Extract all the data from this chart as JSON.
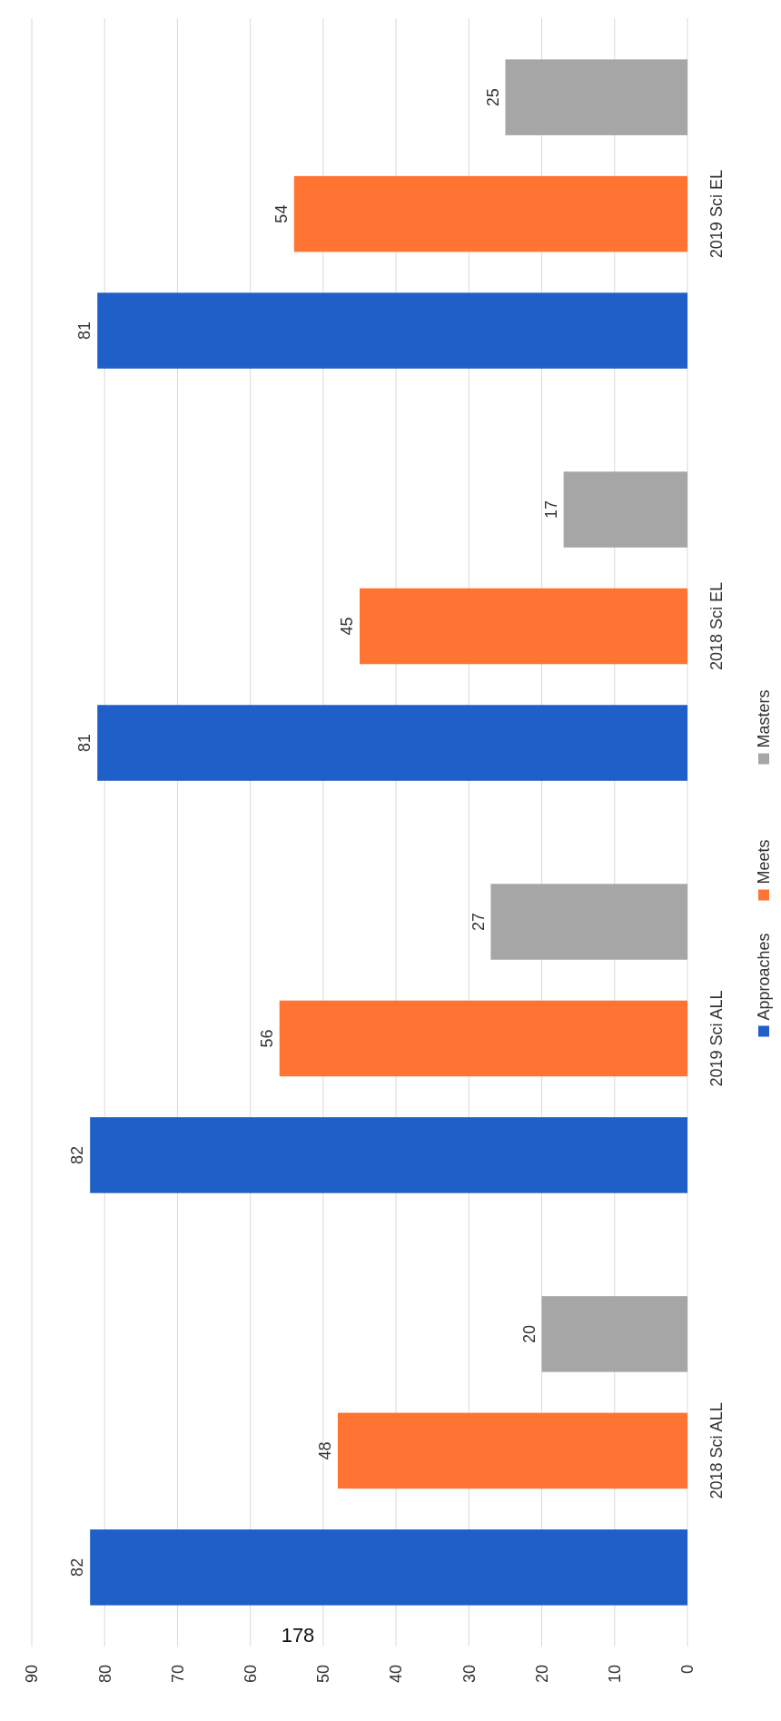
{
  "chart_data": {
    "type": "bar",
    "orientation": "horizontal",
    "categories": [
      "2019 Sci EL",
      "2018 Sci EL",
      "2019 Sci ALL",
      "2018 Sci ALL"
    ],
    "series": [
      {
        "name": "Approaches",
        "color": "#1f5fc8",
        "values": [
          81,
          81,
          82,
          82
        ]
      },
      {
        "name": "Meets",
        "color": "#ff7433",
        "values": [
          54,
          45,
          56,
          48
        ]
      },
      {
        "name": "Masters",
        "color": "#a6a6a6",
        "values": [
          25,
          17,
          27,
          20
        ]
      }
    ],
    "xlim": [
      90,
      0
    ],
    "xticks": [
      90,
      80,
      70,
      60,
      50,
      40,
      30,
      20,
      10,
      0
    ],
    "grid": "x",
    "legend": "right",
    "data_labels": true,
    "annotations": [
      "178"
    ]
  }
}
